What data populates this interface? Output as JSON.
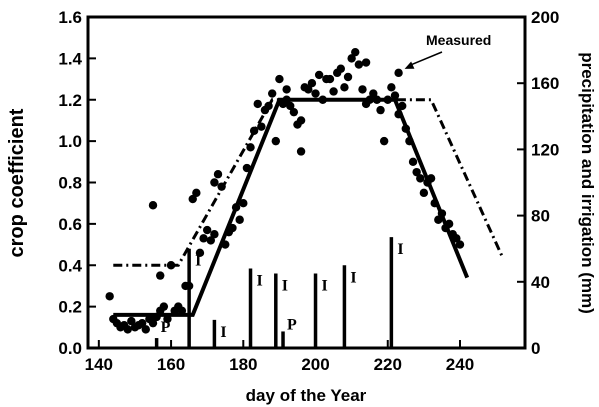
{
  "chart_data": {
    "type": "line",
    "title": "",
    "xlabel": "day of the Year",
    "ylabel": "crop coefficient",
    "y2label": "precipitation and irrigation (mm)",
    "xlim": [
      137,
      258
    ],
    "ylim": [
      0,
      1.6
    ],
    "y2lim": [
      0,
      200
    ],
    "x_ticks": [
      140,
      160,
      180,
      200,
      220,
      240
    ],
    "y_ticks": [
      0.0,
      0.2,
      0.4,
      0.6,
      0.8,
      1.0,
      1.2,
      1.4,
      1.6
    ],
    "y_tick_labels": [
      "0.0",
      "0.2",
      "0.4",
      "0.6",
      "0.8",
      "1.0",
      "1.2",
      "1.4",
      "1.6"
    ],
    "y2_ticks": [
      0,
      40,
      80,
      120,
      160,
      200
    ],
    "grid": false,
    "series": [
      {
        "style": "solid",
        "x": [
          144,
          166,
          190,
          222,
          242
        ],
        "y": [
          0.16,
          0.16,
          1.2,
          1.2,
          0.34
        ]
      },
      {
        "style": "dash-dot",
        "x": [
          144,
          162,
          188,
          232,
          252
        ],
        "y": [
          0.4,
          0.4,
          1.2,
          1.2,
          0.43
        ]
      },
      {
        "name": "Measured",
        "style": "scatter",
        "x": [
          143,
          144,
          145,
          146,
          147,
          148,
          149,
          150,
          151,
          152,
          153,
          154,
          155,
          156,
          157,
          157,
          158,
          159,
          160,
          161,
          162,
          163,
          164,
          165,
          166,
          167,
          168,
          169,
          170,
          171,
          172,
          172,
          173,
          174,
          175,
          176,
          177,
          178,
          179,
          180,
          181,
          182,
          183,
          184,
          185,
          186,
          187,
          188,
          189,
          190,
          191,
          192,
          193,
          194,
          195,
          196,
          197,
          198,
          199,
          200,
          201,
          202,
          203,
          204,
          205,
          206,
          207,
          208,
          209,
          210,
          211,
          212,
          213,
          214,
          215,
          216,
          217,
          218,
          219,
          220,
          221,
          222,
          223,
          224,
          225,
          226,
          227,
          228,
          229,
          230,
          231,
          232,
          233,
          234,
          235,
          236,
          237,
          238,
          239,
          240,
          155,
          192,
          196,
          214,
          223
        ],
        "y": [
          0.25,
          0.14,
          0.12,
          0.1,
          0.11,
          0.09,
          0.13,
          0.1,
          0.11,
          0.12,
          0.09,
          0.14,
          0.12,
          0.15,
          0.18,
          0.35,
          0.2,
          0.14,
          0.4,
          0.18,
          0.2,
          0.18,
          0.3,
          0.3,
          0.72,
          0.75,
          0.46,
          0.53,
          0.57,
          0.52,
          0.8,
          0.55,
          0.84,
          0.78,
          0.5,
          0.56,
          0.58,
          0.68,
          0.62,
          0.7,
          0.87,
          0.97,
          1.05,
          1.18,
          1.07,
          1.15,
          1.17,
          1.23,
          1.0,
          1.3,
          1.18,
          1.2,
          1.17,
          1.14,
          1.08,
          1.1,
          1.26,
          1.25,
          1.28,
          1.23,
          1.32,
          1.2,
          1.3,
          1.3,
          1.24,
          1.33,
          1.35,
          1.26,
          1.31,
          1.4,
          1.43,
          1.37,
          1.25,
          1.18,
          1.2,
          1.23,
          1.2,
          1.15,
          1.0,
          1.2,
          1.26,
          1.22,
          1.13,
          1.17,
          1.06,
          1.0,
          0.9,
          0.85,
          0.82,
          0.75,
          0.8,
          0.82,
          0.7,
          0.62,
          0.65,
          0.58,
          0.6,
          0.55,
          0.53,
          0.5,
          0.69,
          1.25,
          0.95,
          1.38,
          1.33
        ]
      },
      {
        "name": "",
        "style": "bars-secondary-axis",
        "events": [
          {
            "x": 156,
            "value": 6,
            "label": "P"
          },
          {
            "x": 165,
            "value": 60,
            "label": "I"
          },
          {
            "x": 172,
            "value": 17,
            "label": "I"
          },
          {
            "x": 182,
            "value": 48,
            "label": "I"
          },
          {
            "x": 189,
            "value": 45,
            "label": "I"
          },
          {
            "x": 191,
            "value": 10,
            "label": "P"
          },
          {
            "x": 200,
            "value": 45,
            "label": "I"
          },
          {
            "x": 208,
            "value": 50,
            "label": "I"
          },
          {
            "x": 221,
            "value": 67,
            "label": "I"
          }
        ]
      }
    ],
    "annotations": [
      {
        "text": "Measured",
        "points_to": {
          "x": 223,
          "y": 1.33
        }
      }
    ]
  }
}
